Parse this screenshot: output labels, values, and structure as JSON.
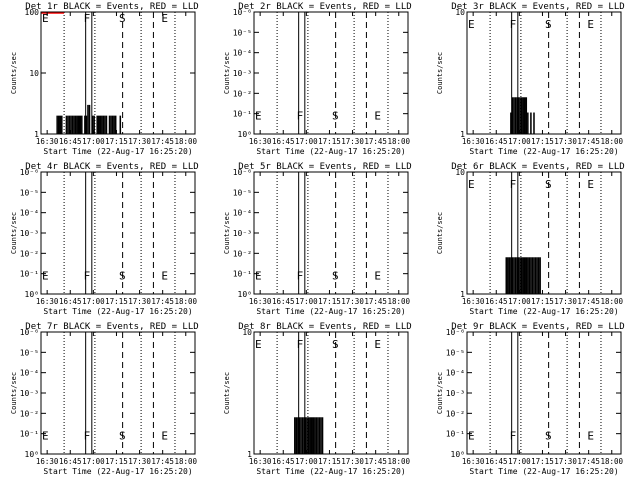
{
  "chart_data": [
    {
      "type": "histogram",
      "title": "Det 1r BLACK = Events, RED = LLD",
      "xlabel": "Start Time (22-Aug-17 16:25:20)",
      "ylabel": "Counts/sec",
      "yscale": "log",
      "ylim": [
        1,
        100
      ],
      "ytick_labels": [
        "1",
        "10",
        "100"
      ],
      "ytick_values": [
        1,
        10,
        100
      ],
      "markers": [
        {
          "label": "E",
          "x": 0
        },
        {
          "label": "F",
          "x": 27
        },
        {
          "label": "S",
          "x": 50
        },
        {
          "label": "E",
          "x": 77.5
        }
      ],
      "dotted_lines": [
        15,
        35,
        65,
        87
      ],
      "solid_lines": [
        29,
        33
      ],
      "dashed_lines": [
        53,
        73
      ],
      "lld_trace": {
        "x": [
          0,
          15
        ],
        "y": [
          100,
          100
        ]
      },
      "bars": {
        "x": [
          10,
          11,
          12,
          13,
          16,
          17,
          18,
          19,
          20,
          21,
          22,
          23,
          24,
          25,
          26,
          28,
          29,
          30,
          31,
          33,
          34,
          36,
          37,
          38,
          39,
          40,
          41,
          42,
          44,
          45,
          46,
          47,
          48,
          51
        ],
        "y": [
          2,
          2,
          2,
          2,
          2,
          2,
          2,
          2,
          2,
          2,
          2,
          2,
          2,
          2,
          2,
          2,
          2,
          3,
          3,
          2,
          2,
          2,
          2,
          2,
          2,
          2,
          2,
          2,
          2,
          2,
          2,
          2,
          2,
          2
        ]
      }
    },
    {
      "type": "histogram",
      "title": "Det 2r BLACK = Events, RED = LLD",
      "xlabel": "Start Time (22-Aug-17 16:25:20)",
      "ylabel": "Counts/sec",
      "yscale": "log",
      "ylim": [
        1,
        1e-06
      ],
      "ytick_labels": [
        "10⁰",
        "10⁻¹",
        "10⁻²",
        "10⁻³",
        "10⁻⁴",
        "10⁻⁵",
        "10⁻⁶"
      ],
      "ytick_values": [
        1,
        0.1,
        0.01,
        0.001,
        0.0001,
        1e-05,
        1e-06
      ],
      "markers": [
        {
          "label": "E",
          "x": 0
        },
        {
          "label": "F",
          "x": 27
        },
        {
          "label": "S",
          "x": 50
        },
        {
          "label": "E",
          "x": 77.5
        }
      ],
      "dotted_lines": [
        15,
        35,
        65,
        87
      ],
      "solid_lines": [
        29,
        33
      ],
      "dashed_lines": [
        53,
        73
      ],
      "bars": {
        "x": [],
        "y": []
      }
    },
    {
      "type": "histogram",
      "title": "Det 3r BLACK = Events, RED = LLD",
      "xlabel": "Start Time (22-Aug-17 16:25:20)",
      "ylabel": "Counts/sec",
      "yscale": "log",
      "ylim": [
        1,
        10
      ],
      "ytick_labels": [
        "1",
        "10"
      ],
      "ytick_values": [
        1,
        10
      ],
      "markers": [
        {
          "label": "E",
          "x": 0
        },
        {
          "label": "F",
          "x": 27
        },
        {
          "label": "S",
          "x": 50
        },
        {
          "label": "E",
          "x": 77.5
        }
      ],
      "dotted_lines": [
        15,
        35,
        65,
        87
      ],
      "solid_lines": [
        29,
        33
      ],
      "dashed_lines": [
        53,
        73
      ],
      "bars": {
        "x": [
          28,
          29,
          30,
          31,
          32,
          33,
          34,
          35,
          36,
          37,
          38,
          39,
          41,
          43
        ],
        "y": [
          1.5,
          2,
          2,
          2,
          2,
          2,
          2,
          2,
          2,
          2,
          2,
          1.5,
          1.5,
          1.5
        ]
      }
    },
    {
      "type": "histogram",
      "title": "Det 4r BLACK = Events, RED = LLD",
      "xlabel": "Start Time (22-Aug-17 16:25:20)",
      "ylabel": "Counts/sec",
      "yscale": "log",
      "ylim": [
        1,
        1e-06
      ],
      "ytick_labels": [
        "10⁰",
        "10⁻¹",
        "10⁻²",
        "10⁻³",
        "10⁻⁴",
        "10⁻⁵",
        "10⁻⁶"
      ],
      "ytick_values": [
        1,
        0.1,
        0.01,
        0.001,
        0.0001,
        1e-05,
        1e-06
      ],
      "markers": [
        {
          "label": "E",
          "x": 0
        },
        {
          "label": "F",
          "x": 27
        },
        {
          "label": "S",
          "x": 50
        },
        {
          "label": "E",
          "x": 77.5
        }
      ],
      "dotted_lines": [
        15,
        35,
        65,
        87
      ],
      "solid_lines": [
        29,
        33
      ],
      "dashed_lines": [
        53,
        73
      ],
      "bars": {
        "x": [],
        "y": []
      }
    },
    {
      "type": "histogram",
      "title": "Det 5r BLACK = Events, RED = LLD",
      "xlabel": "Start Time (22-Aug-17 16:25:20)",
      "ylabel": "Counts/sec",
      "yscale": "log",
      "ylim": [
        1,
        1e-06
      ],
      "ytick_labels": [
        "10⁰",
        "10⁻¹",
        "10⁻²",
        "10⁻³",
        "10⁻⁴",
        "10⁻⁵",
        "10⁻⁶"
      ],
      "ytick_values": [
        1,
        0.1,
        0.01,
        0.001,
        0.0001,
        1e-05,
        1e-06
      ],
      "markers": [
        {
          "label": "E",
          "x": 0
        },
        {
          "label": "F",
          "x": 27
        },
        {
          "label": "S",
          "x": 50
        },
        {
          "label": "E",
          "x": 77.5
        }
      ],
      "dotted_lines": [
        15,
        35,
        65,
        87
      ],
      "solid_lines": [
        29,
        33
      ],
      "dashed_lines": [
        53,
        73
      ],
      "bars": {
        "x": [],
        "y": []
      }
    },
    {
      "type": "histogram",
      "title": "Det 6r BLACK = Events, RED = LLD",
      "xlabel": "Start Time (22-Aug-17 16:25:20)",
      "ylabel": "Counts/sec",
      "yscale": "log",
      "ylim": [
        1,
        10
      ],
      "ytick_labels": [
        "1",
        "10"
      ],
      "ytick_values": [
        1,
        10
      ],
      "markers": [
        {
          "label": "E",
          "x": 0
        },
        {
          "label": "F",
          "x": 27
        },
        {
          "label": "S",
          "x": 50
        },
        {
          "label": "E",
          "x": 77.5
        }
      ],
      "dotted_lines": [
        15,
        35,
        65,
        87
      ],
      "solid_lines": [
        29,
        33
      ],
      "dashed_lines": [
        53,
        73
      ],
      "bars": {
        "x": [
          25,
          26,
          27,
          28,
          29,
          30,
          31,
          32,
          33,
          34,
          35,
          36,
          37,
          38,
          39,
          40,
          41,
          42,
          43,
          44,
          45,
          46,
          47
        ],
        "y": [
          2,
          2,
          2,
          2,
          2,
          2,
          2,
          2,
          2,
          2,
          2,
          2,
          2,
          2,
          2,
          2,
          2,
          2,
          2,
          2,
          2,
          2,
          2
        ]
      }
    },
    {
      "type": "histogram",
      "title": "Det 7r BLACK = Events, RED = LLD",
      "xlabel": "Start Time (22-Aug-17 16:25:20)",
      "ylabel": "Counts/sec",
      "yscale": "log",
      "ylim": [
        1,
        1e-06
      ],
      "ytick_labels": [
        "10⁰",
        "10⁻¹",
        "10⁻²",
        "10⁻³",
        "10⁻⁴",
        "10⁻⁵",
        "10⁻⁶"
      ],
      "ytick_values": [
        1,
        0.1,
        0.01,
        0.001,
        0.0001,
        1e-05,
        1e-06
      ],
      "markers": [
        {
          "label": "E",
          "x": 0
        },
        {
          "label": "F",
          "x": 27
        },
        {
          "label": "S",
          "x": 50
        },
        {
          "label": "E",
          "x": 77.5
        }
      ],
      "dotted_lines": [
        15,
        35,
        65,
        87
      ],
      "solid_lines": [
        29,
        33
      ],
      "dashed_lines": [
        53,
        73
      ],
      "bars": {
        "x": [],
        "y": []
      }
    },
    {
      "type": "histogram",
      "title": "Det 8r BLACK = Events, RED = LLD",
      "xlabel": "Start Time (22-Aug-17 16:25:20)",
      "ylabel": "Counts/sec",
      "yscale": "log",
      "ylim": [
        1,
        10
      ],
      "ytick_labels": [
        "1",
        "10"
      ],
      "ytick_values": [
        1,
        10
      ],
      "markers": [
        {
          "label": "E",
          "x": 0
        },
        {
          "label": "F",
          "x": 27
        },
        {
          "label": "S",
          "x": 50
        },
        {
          "label": "E",
          "x": 77.5
        }
      ],
      "dotted_lines": [
        15,
        35,
        65,
        87
      ],
      "solid_lines": [
        29,
        33
      ],
      "dashed_lines": [
        53,
        73
      ],
      "bars": {
        "x": [
          26,
          27,
          28,
          29,
          30,
          31,
          32,
          33,
          34,
          35,
          36,
          37,
          38,
          39,
          40,
          41,
          42,
          43,
          44
        ],
        "y": [
          2,
          2,
          2,
          2,
          2,
          2,
          2,
          2,
          2,
          2,
          2,
          2,
          2,
          2,
          2,
          2,
          2,
          2,
          2
        ]
      }
    },
    {
      "type": "histogram",
      "title": "Det 9r BLACK = Events, RED = LLD",
      "xlabel": "Start Time (22-Aug-17 16:25:20)",
      "ylabel": "Counts/sec",
      "yscale": "log",
      "ylim": [
        1,
        1e-06
      ],
      "ytick_labels": [
        "10⁰",
        "10⁻¹",
        "10⁻²",
        "10⁻³",
        "10⁻⁴",
        "10⁻⁵",
        "10⁻⁶"
      ],
      "ytick_values": [
        1,
        0.1,
        0.01,
        0.001,
        0.0001,
        1e-05,
        1e-06
      ],
      "markers": [
        {
          "label": "E",
          "x": 0
        },
        {
          "label": "F",
          "x": 27
        },
        {
          "label": "S",
          "x": 50
        },
        {
          "label": "E",
          "x": 77.5
        }
      ],
      "dotted_lines": [
        15,
        35,
        65,
        87
      ],
      "solid_lines": [
        29,
        33
      ],
      "dashed_lines": [
        53,
        73
      ],
      "bars": {
        "x": [],
        "y": []
      }
    }
  ],
  "x_axis": {
    "range": [
      0,
      100
    ],
    "tick_values": [
      4,
      19,
      34,
      49,
      64,
      79,
      94
    ],
    "tick_labels": [
      "16:30",
      "16:45",
      "17:00",
      "17:15",
      "17:30",
      "17:45",
      "18:00"
    ]
  },
  "colors": {
    "events": "#000000",
    "lld": "#ff0000",
    "background": "#ffffff"
  }
}
